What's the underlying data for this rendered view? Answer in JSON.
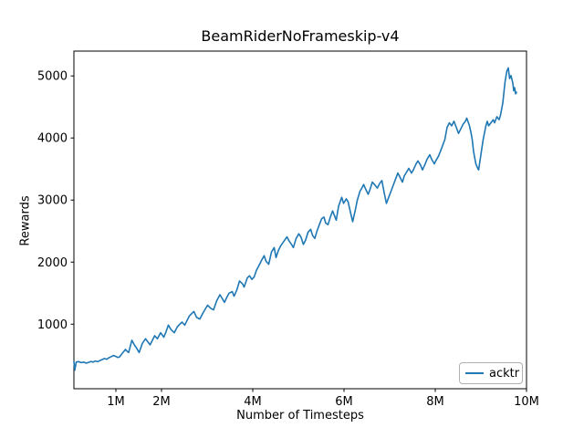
{
  "chart_data": {
    "type": "line",
    "title": "BeamRiderNoFrameskip-v4",
    "xlabel": "Number of Timesteps",
    "ylabel": "Rewards",
    "legend": {
      "label": "acktr",
      "position": "lower right"
    },
    "line_color": "#1f77b4",
    "spine_color": "#000000",
    "background_color": "#ffffff",
    "grid": false,
    "x_unit": "millions_of_timesteps",
    "xlim": [
      0.08,
      10.0
    ],
    "ylim": [
      -40,
      5400
    ],
    "x_ticks": [
      {
        "value": 1,
        "label": "1M"
      },
      {
        "value": 2,
        "label": "2M"
      },
      {
        "value": 4,
        "label": "4M"
      },
      {
        "value": 6,
        "label": "6M"
      },
      {
        "value": 8,
        "label": "8M"
      },
      {
        "value": 10,
        "label": "10M"
      }
    ],
    "y_ticks": [
      {
        "value": 1000,
        "label": "1000"
      },
      {
        "value": 2000,
        "label": "2000"
      },
      {
        "value": 3000,
        "label": "3000"
      },
      {
        "value": 4000,
        "label": "4000"
      },
      {
        "value": 5000,
        "label": "5000"
      }
    ],
    "series": [
      {
        "name": "acktr",
        "color": "#1f77b4",
        "points": [
          [
            0.08,
            395
          ],
          [
            0.1,
            260
          ],
          [
            0.13,
            390
          ],
          [
            0.18,
            397
          ],
          [
            0.24,
            380
          ],
          [
            0.3,
            390
          ],
          [
            0.35,
            372
          ],
          [
            0.4,
            385
          ],
          [
            0.45,
            398
          ],
          [
            0.5,
            390
          ],
          [
            0.55,
            407
          ],
          [
            0.6,
            395
          ],
          [
            0.65,
            415
          ],
          [
            0.7,
            430
          ],
          [
            0.75,
            446
          ],
          [
            0.8,
            435
          ],
          [
            0.85,
            460
          ],
          [
            0.9,
            478
          ],
          [
            0.95,
            495
          ],
          [
            1.0,
            480
          ],
          [
            1.04,
            465
          ],
          [
            1.08,
            471
          ],
          [
            1.14,
            530
          ],
          [
            1.21,
            593
          ],
          [
            1.25,
            560
          ],
          [
            1.28,
            544
          ],
          [
            1.35,
            740
          ],
          [
            1.41,
            660
          ],
          [
            1.45,
            618
          ],
          [
            1.51,
            544
          ],
          [
            1.58,
            691
          ],
          [
            1.65,
            765
          ],
          [
            1.7,
            715
          ],
          [
            1.75,
            667
          ],
          [
            1.8,
            740
          ],
          [
            1.85,
            814
          ],
          [
            1.91,
            765
          ],
          [
            1.98,
            863
          ],
          [
            2.05,
            789
          ],
          [
            2.1,
            880
          ],
          [
            2.15,
            985
          ],
          [
            2.21,
            912
          ],
          [
            2.28,
            863
          ],
          [
            2.35,
            961
          ],
          [
            2.4,
            1000
          ],
          [
            2.45,
            1034
          ],
          [
            2.51,
            985
          ],
          [
            2.56,
            1060
          ],
          [
            2.61,
            1132
          ],
          [
            2.66,
            1170
          ],
          [
            2.71,
            1206
          ],
          [
            2.77,
            1108
          ],
          [
            2.84,
            1084
          ],
          [
            2.91,
            1182
          ],
          [
            2.96,
            1245
          ],
          [
            3.01,
            1305
          ],
          [
            3.08,
            1256
          ],
          [
            3.14,
            1231
          ],
          [
            3.21,
            1378
          ],
          [
            3.28,
            1475
          ],
          [
            3.34,
            1402
          ],
          [
            3.38,
            1353
          ],
          [
            3.43,
            1430
          ],
          [
            3.48,
            1500
          ],
          [
            3.55,
            1525
          ],
          [
            3.59,
            1451
          ],
          [
            3.65,
            1549
          ],
          [
            3.71,
            1696
          ],
          [
            3.78,
            1647
          ],
          [
            3.81,
            1598
          ],
          [
            3.88,
            1745
          ],
          [
            3.93,
            1780
          ],
          [
            3.98,
            1721
          ],
          [
            4.03,
            1760
          ],
          [
            4.08,
            1868
          ],
          [
            4.15,
            1966
          ],
          [
            4.2,
            2039
          ],
          [
            4.25,
            2103
          ],
          [
            4.29,
            2015
          ],
          [
            4.35,
            1966
          ],
          [
            4.41,
            2162
          ],
          [
            4.47,
            2235
          ],
          [
            4.51,
            2074
          ],
          [
            4.56,
            2186
          ],
          [
            4.61,
            2260
          ],
          [
            4.68,
            2333
          ],
          [
            4.75,
            2407
          ],
          [
            4.79,
            2348
          ],
          [
            4.85,
            2284
          ],
          [
            4.89,
            2235
          ],
          [
            4.95,
            2382
          ],
          [
            5.01,
            2456
          ],
          [
            5.06,
            2397
          ],
          [
            5.11,
            2284
          ],
          [
            5.16,
            2358
          ],
          [
            5.21,
            2480
          ],
          [
            5.27,
            2529
          ],
          [
            5.31,
            2431
          ],
          [
            5.36,
            2382
          ],
          [
            5.41,
            2505
          ],
          [
            5.46,
            2603
          ],
          [
            5.51,
            2701
          ],
          [
            5.56,
            2725
          ],
          [
            5.6,
            2627
          ],
          [
            5.65,
            2603
          ],
          [
            5.7,
            2725
          ],
          [
            5.75,
            2824
          ],
          [
            5.79,
            2750
          ],
          [
            5.83,
            2676
          ],
          [
            5.88,
            2897
          ],
          [
            5.95,
            3044
          ],
          [
            5.99,
            2946
          ],
          [
            6.05,
            3020
          ],
          [
            6.09,
            2971
          ],
          [
            6.15,
            2774
          ],
          [
            6.19,
            2652
          ],
          [
            6.25,
            2848
          ],
          [
            6.29,
            2995
          ],
          [
            6.35,
            3143
          ],
          [
            6.39,
            3191
          ],
          [
            6.43,
            3250
          ],
          [
            6.48,
            3167
          ],
          [
            6.53,
            3093
          ],
          [
            6.58,
            3191
          ],
          [
            6.62,
            3289
          ],
          [
            6.68,
            3240
          ],
          [
            6.73,
            3191
          ],
          [
            6.78,
            3265
          ],
          [
            6.83,
            3314
          ],
          [
            6.88,
            3118
          ],
          [
            6.93,
            2946
          ],
          [
            6.98,
            3044
          ],
          [
            7.03,
            3142
          ],
          [
            7.08,
            3240
          ],
          [
            7.13,
            3338
          ],
          [
            7.18,
            3436
          ],
          [
            7.23,
            3363
          ],
          [
            7.28,
            3289
          ],
          [
            7.32,
            3387
          ],
          [
            7.38,
            3461
          ],
          [
            7.42,
            3510
          ],
          [
            7.48,
            3436
          ],
          [
            7.52,
            3485
          ],
          [
            7.58,
            3583
          ],
          [
            7.62,
            3632
          ],
          [
            7.68,
            3559
          ],
          [
            7.72,
            3485
          ],
          [
            7.78,
            3583
          ],
          [
            7.82,
            3657
          ],
          [
            7.88,
            3730
          ],
          [
            7.92,
            3657
          ],
          [
            7.98,
            3583
          ],
          [
            8.01,
            3632
          ],
          [
            8.07,
            3706
          ],
          [
            8.11,
            3779
          ],
          [
            8.16,
            3877
          ],
          [
            8.21,
            3975
          ],
          [
            8.26,
            4172
          ],
          [
            8.31,
            4245
          ],
          [
            8.36,
            4196
          ],
          [
            8.41,
            4270
          ],
          [
            8.46,
            4172
          ],
          [
            8.51,
            4074
          ],
          [
            8.56,
            4147
          ],
          [
            8.61,
            4221
          ],
          [
            8.66,
            4270
          ],
          [
            8.69,
            4319
          ],
          [
            8.75,
            4196
          ],
          [
            8.78,
            4098
          ],
          [
            8.81,
            3975
          ],
          [
            8.84,
            3779
          ],
          [
            8.89,
            3583
          ],
          [
            8.93,
            3510
          ],
          [
            8.95,
            3485
          ],
          [
            9.01,
            3779
          ],
          [
            9.05,
            3975
          ],
          [
            9.11,
            4196
          ],
          [
            9.14,
            4270
          ],
          [
            9.17,
            4196
          ],
          [
            9.22,
            4245
          ],
          [
            9.27,
            4294
          ],
          [
            9.3,
            4245
          ],
          [
            9.35,
            4343
          ],
          [
            9.4,
            4294
          ],
          [
            9.43,
            4368
          ],
          [
            9.48,
            4564
          ],
          [
            9.53,
            4908
          ],
          [
            9.57,
            5080
          ],
          [
            9.6,
            5129
          ],
          [
            9.63,
            4957
          ],
          [
            9.66,
            5006
          ],
          [
            9.7,
            4884
          ],
          [
            9.72,
            4761
          ],
          [
            9.74,
            4810
          ],
          [
            9.76,
            4712
          ],
          [
            9.78,
            4737
          ]
        ]
      }
    ]
  }
}
